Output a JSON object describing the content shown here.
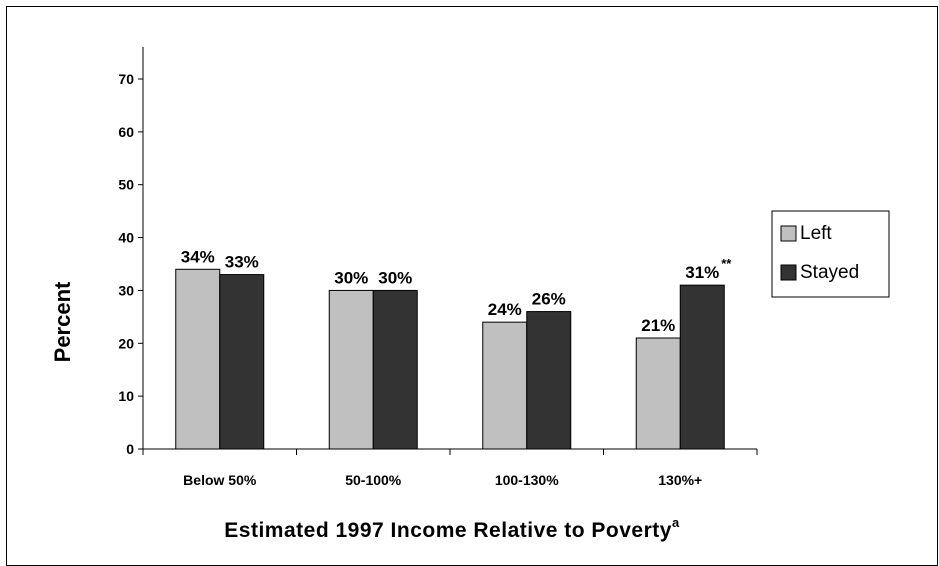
{
  "chart_data": {
    "type": "bar",
    "categories": [
      "Below 50%",
      "50-100%",
      "100-130%",
      "130%+"
    ],
    "series": [
      {
        "name": "Left",
        "values": [
          34,
          30,
          24,
          21
        ],
        "labels": [
          "34%",
          "30%",
          "24%",
          "21%"
        ],
        "color": "#c0c0c0"
      },
      {
        "name": "Stayed",
        "values": [
          33,
          30,
          26,
          31
        ],
        "labels": [
          "33%",
          "30%",
          "26%",
          "31%"
        ],
        "color": "#333333"
      }
    ],
    "annotations": [
      {
        "category": "130%+",
        "series": "Stayed",
        "text": "**"
      }
    ],
    "xlabel": "Estimated 1997 Income Relative to Poverty",
    "xlabel_superscript": "a",
    "ylabel": "Percent",
    "ylim": [
      0,
      70
    ],
    "yticks": [
      0,
      10,
      20,
      30,
      40,
      50,
      60,
      70
    ],
    "grid": false,
    "legend": "right"
  }
}
